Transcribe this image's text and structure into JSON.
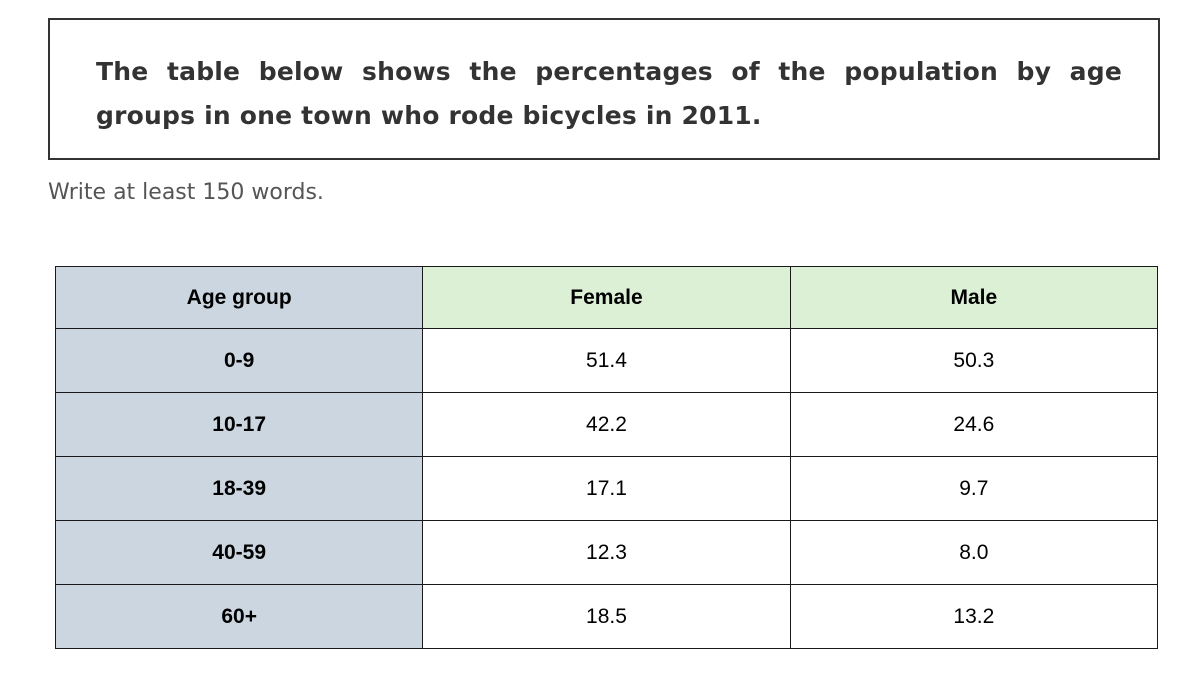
{
  "prompt": {
    "text": "The table below shows the percentages of the population by age groups in one town who rode bicycles in 2011."
  },
  "instruction": "Write at least 150 words.",
  "table": {
    "headers": [
      "Age group",
      "Female",
      "Male"
    ],
    "rows": [
      [
        "0-9",
        "51.4",
        "50.3"
      ],
      [
        "10-17",
        "42.2",
        "24.6"
      ],
      [
        "18-39",
        "17.1",
        "9.7"
      ],
      [
        "40-59",
        "12.3",
        "8.0"
      ],
      [
        "60+",
        "18.5",
        "13.2"
      ]
    ]
  },
  "colors": {
    "age_column": "#cbd6e1",
    "header_green": "#dcf0d5",
    "border": "#1a1a1a"
  }
}
